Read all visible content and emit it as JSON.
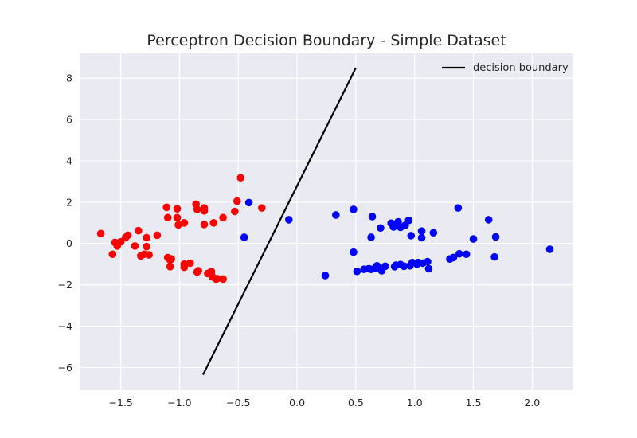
{
  "chart_data": {
    "type": "scatter",
    "title": "Perceptron Decision Boundary - Simple Dataset",
    "xlabel": "",
    "ylabel": "",
    "xlim": [
      -1.85,
      2.35
    ],
    "ylim": [
      -7.1,
      9.2
    ],
    "xticks": [
      -1.5,
      -1.0,
      -0.5,
      0.0,
      0.5,
      1.0,
      1.5,
      2.0
    ],
    "xtick_labels": [
      "−1.5",
      "−1.0",
      "−0.5",
      "0.0",
      "0.5",
      "1.0",
      "1.5",
      "2.0"
    ],
    "yticks": [
      -6,
      -4,
      -2,
      0,
      2,
      4,
      6,
      8
    ],
    "ytick_labels": [
      "−6",
      "−4",
      "−2",
      "0",
      "2",
      "4",
      "6",
      "8"
    ],
    "grid": true,
    "legend": {
      "position": "upper right",
      "entries": [
        "decision boundary"
      ]
    },
    "colors": {
      "background": "#eaeaf2",
      "grid": "#ffffff",
      "class_a": "#ff0000",
      "class_b": "#0000ff",
      "line": "#000000"
    },
    "series": [
      {
        "color": "#ff0000",
        "points": [
          [
            -1.67,
            0.48
          ],
          [
            -1.57,
            -0.52
          ],
          [
            -1.55,
            0.05
          ],
          [
            -1.53,
            -0.12
          ],
          [
            -1.5,
            0.08
          ],
          [
            -1.46,
            0.28
          ],
          [
            -1.44,
            0.4
          ],
          [
            -1.38,
            -0.12
          ],
          [
            -1.35,
            0.62
          ],
          [
            -1.33,
            -0.6
          ],
          [
            -1.3,
            -0.52
          ],
          [
            -1.28,
            0.28
          ],
          [
            -1.28,
            -0.15
          ],
          [
            -1.26,
            -0.55
          ],
          [
            -1.19,
            0.4
          ],
          [
            -1.11,
            1.75
          ],
          [
            -1.1,
            1.25
          ],
          [
            -1.1,
            -0.68
          ],
          [
            -1.08,
            -0.8
          ],
          [
            -1.08,
            -1.12
          ],
          [
            -1.07,
            -0.75
          ],
          [
            -1.02,
            1.25
          ],
          [
            -1.02,
            1.68
          ],
          [
            -1.01,
            0.9
          ],
          [
            -0.96,
            1.0
          ],
          [
            -0.96,
            -1.0
          ],
          [
            -0.96,
            -1.15
          ],
          [
            -0.91,
            -0.95
          ],
          [
            -0.86,
            1.9
          ],
          [
            -0.85,
            1.65
          ],
          [
            -0.85,
            -1.38
          ],
          [
            -0.84,
            -1.32
          ],
          [
            -0.79,
            1.58
          ],
          [
            -0.79,
            1.72
          ],
          [
            -0.79,
            0.92
          ],
          [
            -0.76,
            -1.45
          ],
          [
            -0.73,
            -1.48
          ],
          [
            -0.73,
            -1.35
          ],
          [
            -0.72,
            -1.62
          ],
          [
            -0.71,
            1.0
          ],
          [
            -0.69,
            -1.72
          ],
          [
            -0.68,
            -1.7
          ],
          [
            -0.63,
            1.25
          ],
          [
            -0.63,
            -1.72
          ],
          [
            -0.53,
            1.55
          ],
          [
            -0.51,
            2.05
          ],
          [
            -0.48,
            3.18
          ],
          [
            -0.3,
            1.72
          ]
        ]
      },
      {
        "color": "#0000ff",
        "points": [
          [
            -0.45,
            0.3
          ],
          [
            -0.41,
            1.98
          ],
          [
            -0.07,
            1.15
          ],
          [
            0.24,
            -1.55
          ],
          [
            0.33,
            1.38
          ],
          [
            0.48,
            1.65
          ],
          [
            0.48,
            -0.42
          ],
          [
            0.51,
            -1.35
          ],
          [
            0.57,
            -1.25
          ],
          [
            0.61,
            -1.22
          ],
          [
            0.63,
            -1.25
          ],
          [
            0.63,
            0.3
          ],
          [
            0.64,
            1.3
          ],
          [
            0.67,
            -1.2
          ],
          [
            0.68,
            -1.08
          ],
          [
            0.71,
            0.75
          ],
          [
            0.72,
            -1.32
          ],
          [
            0.75,
            -1.1
          ],
          [
            0.8,
            0.98
          ],
          [
            0.82,
            0.8
          ],
          [
            0.83,
            -1.12
          ],
          [
            0.84,
            -1.05
          ],
          [
            0.86,
            0.9
          ],
          [
            0.86,
            1.05
          ],
          [
            0.88,
            -1.02
          ],
          [
            0.88,
            0.78
          ],
          [
            0.91,
            -1.1
          ],
          [
            0.92,
            0.88
          ],
          [
            0.95,
            1.12
          ],
          [
            0.96,
            -1.08
          ],
          [
            0.97,
            0.38
          ],
          [
            0.98,
            -0.92
          ],
          [
            1.02,
            -1.0
          ],
          [
            1.03,
            -0.92
          ],
          [
            1.06,
            0.28
          ],
          [
            1.06,
            0.6
          ],
          [
            1.07,
            -0.95
          ],
          [
            1.11,
            -0.88
          ],
          [
            1.12,
            -1.22
          ],
          [
            1.16,
            0.52
          ],
          [
            1.3,
            -0.75
          ],
          [
            1.33,
            -0.68
          ],
          [
            1.37,
            1.72
          ],
          [
            1.38,
            -0.5
          ],
          [
            1.44,
            -0.52
          ],
          [
            1.5,
            0.22
          ],
          [
            1.63,
            1.15
          ],
          [
            1.68,
            -0.65
          ],
          [
            1.69,
            0.32
          ],
          [
            2.15,
            -0.28
          ]
        ]
      }
    ],
    "line": {
      "name": "decision boundary",
      "color": "#000000",
      "x": [
        -0.8,
        0.5
      ],
      "y": [
        -6.35,
        8.5
      ]
    }
  }
}
